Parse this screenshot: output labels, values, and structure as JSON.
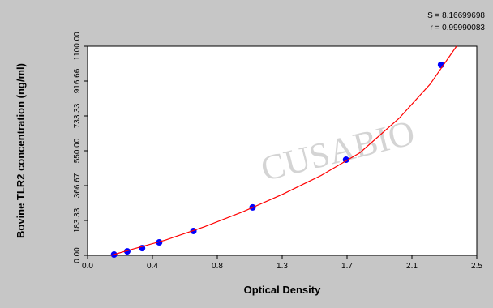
{
  "chart_data": {
    "type": "scatter",
    "title": null,
    "annotations": [
      "S = 8.16699698",
      "r = 0.99990083"
    ],
    "watermark": "CUSABIO",
    "x_label": "Optical Density",
    "y_label": "Bovine TLR2  concentration (ng/ml)",
    "xlim": [
      0,
      2.5
    ],
    "ylim": [
      0,
      1100
    ],
    "xticks": [
      {
        "value": 0,
        "label": "0.0"
      },
      {
        "value": 0.4167,
        "label": "0.4"
      },
      {
        "value": 0.8333,
        "label": "0.8"
      },
      {
        "value": 1.25,
        "label": "1.3"
      },
      {
        "value": 1.6667,
        "label": "1.7"
      },
      {
        "value": 2.0833,
        "label": "2.1"
      },
      2.5
    ],
    "yticks": [
      {
        "value": 0,
        "label": "0.00"
      },
      183.33,
      {
        "value": 366.67,
        "label": "366.67"
      },
      {
        "value": 550,
        "label": "550.00"
      },
      733.33,
      916.66,
      {
        "value": 1100,
        "label": "1100.00"
      }
    ],
    "series": [
      {
        "type": "scatter",
        "color": "#0000ff",
        "x": [
          0.17,
          0.255,
          0.35,
          0.46,
          0.68,
          1.06,
          1.66,
          2.27
        ],
        "values": [
          4,
          21,
          38,
          68,
          128,
          252,
          503,
          1002
        ]
      },
      {
        "type": "line",
        "color": "#ff0000",
        "x": [
          0.15,
          0.3,
          0.5,
          0.75,
          1.0,
          1.25,
          1.5,
          1.75,
          2.0,
          2.2,
          2.37
        ],
        "values": [
          0,
          35,
          80,
          150,
          230,
          320,
          420,
          540,
          720,
          900,
          1100
        ]
      }
    ]
  }
}
